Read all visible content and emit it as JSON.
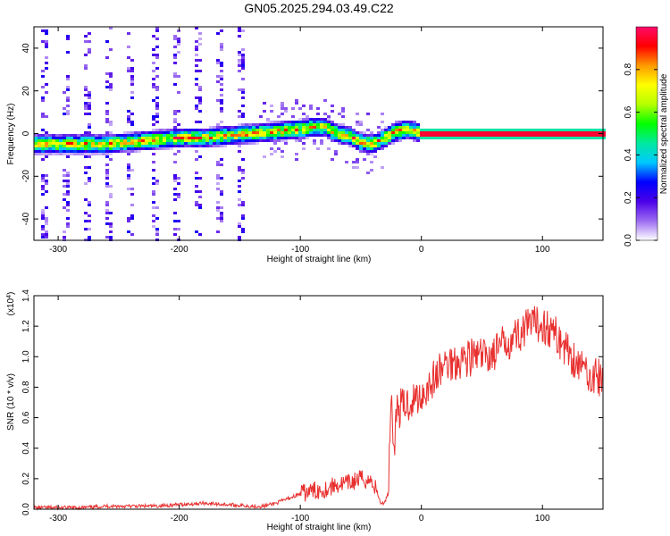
{
  "chart_data": [
    {
      "type": "heatmap",
      "title": "GN05.2025.294.03.49.C22",
      "xlabel": "Height of straight line (km)",
      "ylabel": "Frequency (Hz)",
      "xlim": [
        -320,
        150
      ],
      "ylim": [
        -50,
        50
      ],
      "xticks": [
        -300,
        -200,
        -100,
        0,
        100
      ],
      "yticks": [
        -40,
        -20,
        0,
        20,
        40
      ],
      "colorbar": {
        "label": "Normalized spectral amplitude",
        "range": [
          0,
          1
        ],
        "ticks": [
          0.0,
          0.2,
          0.4,
          0.6,
          0.8
        ],
        "colormap": [
          "#ffffff",
          "#9c6cf2",
          "#4b00e8",
          "#0000ff",
          "#00c8ff",
          "#00e9a0",
          "#00ff00",
          "#b4ff00",
          "#ffff00",
          "#ff9a00",
          "#ff0000",
          "#ff0a6a"
        ]
      },
      "ridge": {
        "x": [
          -320,
          -300,
          -280,
          -260,
          -240,
          -220,
          -200,
          -180,
          -160,
          -140,
          -120,
          -100,
          -90,
          -80,
          -70,
          -60,
          -50,
          -40,
          -30,
          -20,
          -10,
          0,
          150
        ],
        "frequency": [
          -5,
          -5,
          -5,
          -5,
          -4,
          -3,
          -2,
          -2,
          -1,
          0,
          1,
          2,
          3,
          3,
          0,
          -1,
          -4,
          -5,
          -2,
          1,
          2,
          0,
          0
        ]
      }
    },
    {
      "type": "line",
      "xlabel": "Height of straight line (km)",
      "ylabel": "SNR (10 * v/v)",
      "y_multiplier": "(x10",
      "y_multiplier_exp": "4",
      "xlim": [
        -320,
        150
      ],
      "ylim": [
        0,
        1.4
      ],
      "xticks": [
        -300,
        -200,
        -100,
        0,
        100
      ],
      "yticks": [
        0.0,
        0.2,
        0.4,
        0.6,
        0.8,
        1.0,
        1.2,
        1.4
      ],
      "series": [
        {
          "color": "#e8302f",
          "x": [
            -320,
            -300,
            -280,
            -260,
            -240,
            -220,
            -200,
            -180,
            -160,
            -140,
            -130,
            -120,
            -110,
            -100,
            -90,
            -80,
            -70,
            -60,
            -50,
            -40,
            -33,
            -30,
            -28,
            -27,
            -26,
            -25,
            -24,
            -23,
            -20,
            -10,
            0,
            10,
            20,
            30,
            40,
            50,
            60,
            70,
            80,
            90,
            100,
            110,
            120,
            130,
            140,
            150
          ],
          "y": [
            0.01,
            0.01,
            0.01,
            0.02,
            0.02,
            0.02,
            0.03,
            0.04,
            0.03,
            0.02,
            0.02,
            0.04,
            0.07,
            0.1,
            0.12,
            0.13,
            0.16,
            0.17,
            0.2,
            0.18,
            0.03,
            0.05,
            0.1,
            0.2,
            0.5,
            0.8,
            0.55,
            0.4,
            0.65,
            0.7,
            0.75,
            0.85,
            0.95,
            0.98,
            1.0,
            1.0,
            1.02,
            1.1,
            1.15,
            1.2,
            1.22,
            1.15,
            1.05,
            0.95,
            0.88,
            0.85
          ]
        }
      ]
    }
  ]
}
